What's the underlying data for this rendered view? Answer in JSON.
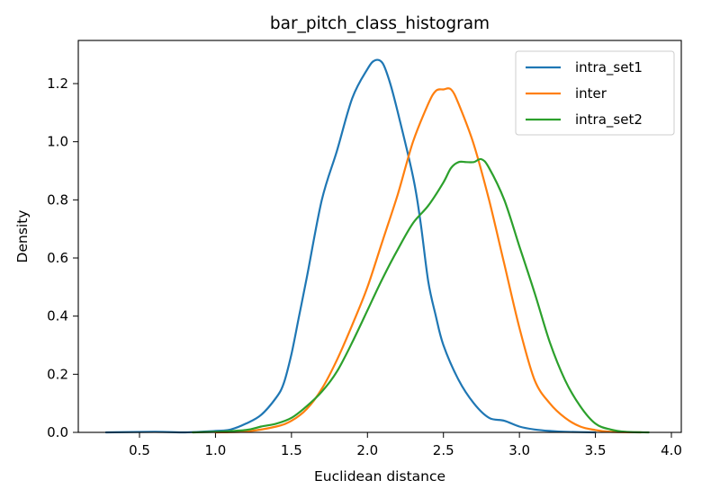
{
  "chart_data": {
    "type": "line",
    "title": "bar_pitch_class_histogram",
    "xlabel": "Euclidean distance",
    "ylabel": "Density",
    "xlim": [
      0.15,
      4.02
    ],
    "ylim": [
      0,
      1.35
    ],
    "xticks": [
      0.5,
      1.0,
      1.5,
      2.0,
      2.5,
      3.0,
      3.5,
      4.0
    ],
    "xtick_labels": [
      "0.5",
      "1.0",
      "1.5",
      "2.0",
      "2.5",
      "3.0",
      "3.5",
      "4.0"
    ],
    "yticks": [
      0.0,
      0.2,
      0.4,
      0.6,
      0.8,
      1.0,
      1.2
    ],
    "ytick_labels": [
      "0.0",
      "0.2",
      "0.4",
      "0.6",
      "0.8",
      "1.0",
      "1.2"
    ],
    "grid": false,
    "legend": "top-right",
    "series": [
      {
        "name": "intra_set1",
        "color": "#1f77b4",
        "points": [
          [
            0.28,
            0.0
          ],
          [
            0.6,
            0.002
          ],
          [
            0.8,
            0.0
          ],
          [
            1.0,
            0.005
          ],
          [
            1.1,
            0.01
          ],
          [
            1.2,
            0.03
          ],
          [
            1.3,
            0.06
          ],
          [
            1.4,
            0.12
          ],
          [
            1.45,
            0.17
          ],
          [
            1.5,
            0.27
          ],
          [
            1.55,
            0.4
          ],
          [
            1.6,
            0.53
          ],
          [
            1.7,
            0.8
          ],
          [
            1.8,
            0.97
          ],
          [
            1.9,
            1.15
          ],
          [
            2.0,
            1.25
          ],
          [
            2.05,
            1.28
          ],
          [
            2.1,
            1.27
          ],
          [
            2.15,
            1.2
          ],
          [
            2.2,
            1.1
          ],
          [
            2.3,
            0.88
          ],
          [
            2.35,
            0.72
          ],
          [
            2.4,
            0.52
          ],
          [
            2.45,
            0.4
          ],
          [
            2.5,
            0.3
          ],
          [
            2.6,
            0.18
          ],
          [
            2.7,
            0.1
          ],
          [
            2.8,
            0.05
          ],
          [
            2.9,
            0.04
          ],
          [
            3.0,
            0.02
          ],
          [
            3.1,
            0.01
          ],
          [
            3.2,
            0.005
          ],
          [
            3.3,
            0.002
          ],
          [
            3.5,
            0.0
          ]
        ]
      },
      {
        "name": "inter",
        "color": "#ff7f0e",
        "points": [
          [
            1.0,
            0.0
          ],
          [
            1.2,
            0.003
          ],
          [
            1.4,
            0.02
          ],
          [
            1.5,
            0.04
          ],
          [
            1.6,
            0.08
          ],
          [
            1.7,
            0.15
          ],
          [
            1.8,
            0.25
          ],
          [
            1.9,
            0.37
          ],
          [
            2.0,
            0.5
          ],
          [
            2.1,
            0.66
          ],
          [
            2.2,
            0.82
          ],
          [
            2.3,
            1.0
          ],
          [
            2.4,
            1.13
          ],
          [
            2.45,
            1.175
          ],
          [
            2.5,
            1.18
          ],
          [
            2.55,
            1.18
          ],
          [
            2.6,
            1.13
          ],
          [
            2.7,
            0.99
          ],
          [
            2.8,
            0.8
          ],
          [
            2.9,
            0.58
          ],
          [
            3.0,
            0.36
          ],
          [
            3.1,
            0.18
          ],
          [
            3.2,
            0.1
          ],
          [
            3.3,
            0.05
          ],
          [
            3.4,
            0.02
          ],
          [
            3.5,
            0.008
          ],
          [
            3.6,
            0.002
          ],
          [
            3.8,
            0.0
          ]
        ]
      },
      {
        "name": "intra_set2",
        "color": "#2ca02c",
        "points": [
          [
            0.85,
            0.0
          ],
          [
            1.0,
            0.002
          ],
          [
            1.2,
            0.008
          ],
          [
            1.3,
            0.02
          ],
          [
            1.4,
            0.03
          ],
          [
            1.5,
            0.05
          ],
          [
            1.6,
            0.09
          ],
          [
            1.7,
            0.14
          ],
          [
            1.8,
            0.21
          ],
          [
            1.9,
            0.31
          ],
          [
            2.0,
            0.42
          ],
          [
            2.1,
            0.53
          ],
          [
            2.2,
            0.63
          ],
          [
            2.3,
            0.72
          ],
          [
            2.4,
            0.78
          ],
          [
            2.5,
            0.86
          ],
          [
            2.55,
            0.91
          ],
          [
            2.6,
            0.93
          ],
          [
            2.65,
            0.93
          ],
          [
            2.7,
            0.93
          ],
          [
            2.75,
            0.94
          ],
          [
            2.8,
            0.91
          ],
          [
            2.9,
            0.8
          ],
          [
            3.0,
            0.64
          ],
          [
            3.1,
            0.48
          ],
          [
            3.2,
            0.31
          ],
          [
            3.3,
            0.18
          ],
          [
            3.4,
            0.09
          ],
          [
            3.5,
            0.03
          ],
          [
            3.6,
            0.01
          ],
          [
            3.7,
            0.002
          ],
          [
            3.85,
            0.0
          ]
        ]
      }
    ]
  }
}
